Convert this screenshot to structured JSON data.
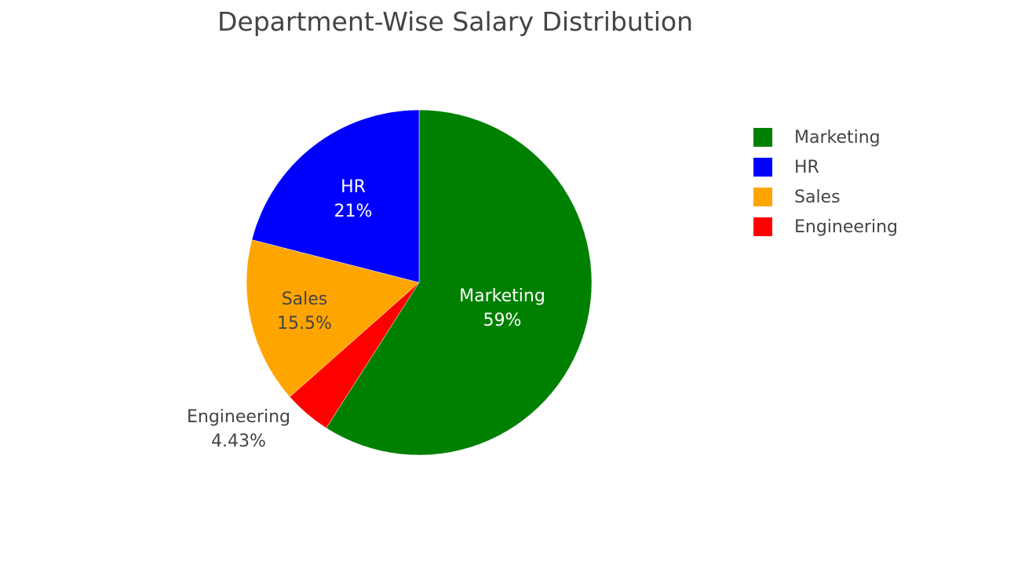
{
  "chart_data": {
    "type": "pie",
    "title": "Department-Wise Salary Distribution",
    "categories": [
      "Marketing",
      "HR",
      "Sales",
      "Engineering"
    ],
    "values": [
      59.0,
      21.0,
      15.5,
      4.43
    ],
    "percent_labels": [
      "59%",
      "21%",
      "15.5%",
      "4.43%"
    ],
    "colors": [
      "#008000",
      "#0000ff",
      "#ffa500",
      "#ff0000"
    ],
    "legend_position": "right",
    "direction": "clockwise",
    "start_angle": "top"
  },
  "title": "Department-Wise Salary Distribution",
  "legend": {
    "items": [
      {
        "label": "Marketing",
        "color": "#008000"
      },
      {
        "label": "HR",
        "color": "#0000ff"
      },
      {
        "label": "Sales",
        "color": "#ffa500"
      },
      {
        "label": "Engineering",
        "color": "#ff0000"
      }
    ]
  },
  "slice_labels": {
    "marketing": {
      "name": "Marketing",
      "pct": "59%"
    },
    "hr": {
      "name": "HR",
      "pct": "21%"
    },
    "sales": {
      "name": "Sales",
      "pct": "15.5%"
    },
    "engineering": {
      "name": "Engineering",
      "pct": "4.43%"
    }
  }
}
